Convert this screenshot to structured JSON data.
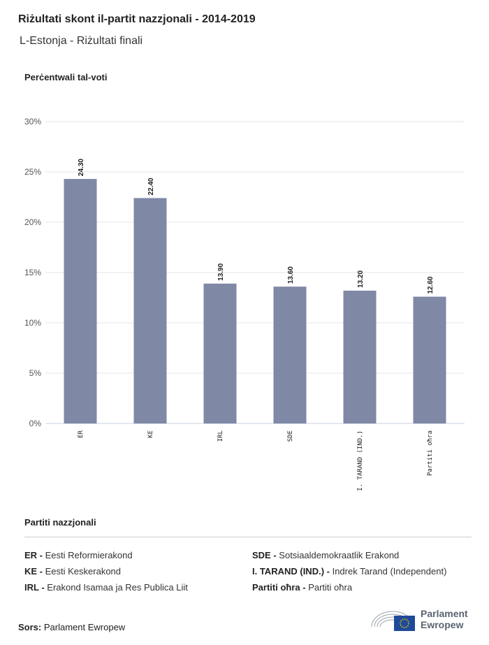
{
  "title": "Riżultati skont il-partit nazzjonali - 2014-2019",
  "subtitle": "L-Estonja - Riżultati finali",
  "legend_title": "Partiti nazzjonali",
  "legend": [
    {
      "abbr": "ER -",
      "name": "Eesti Reformierakond"
    },
    {
      "abbr": "KE -",
      "name": "Eesti Keskerakond"
    },
    {
      "abbr": "IRL -",
      "name": "Erakond Isamaa ja Res Publica Liit"
    },
    {
      "abbr": "SDE -",
      "name": "Sotsiaaldemokraatlik Erakond"
    },
    {
      "abbr": "I. TARAND (IND.) -",
      "name": "Indrek Tarand (Independent)"
    },
    {
      "abbr": "Partiti oħra -",
      "name": "Partiti oħra"
    }
  ],
  "source_label": "Sors:",
  "source": "Parlament Ewropew",
  "logo_text": [
    "Parlament",
    "Ewropew"
  ],
  "colors": {
    "bar": "#7f88a5",
    "grid": "#e6e6e6",
    "axis": "#c8d0e0"
  },
  "chart_data": {
    "type": "bar",
    "ylabel": "Perċentwali tal-voti",
    "categories": [
      "ER",
      "KE",
      "IRL",
      "SDE",
      "I. TARAND (IND.)",
      "Partiti oħra"
    ],
    "values": [
      24.3,
      22.4,
      13.9,
      13.6,
      13.2,
      12.6
    ],
    "value_labels": [
      "24.30",
      "22.40",
      "13.90",
      "13.60",
      "13.20",
      "12.60"
    ],
    "ylim": [
      0,
      30
    ],
    "yticks": [
      0,
      5,
      10,
      15,
      20,
      25,
      30
    ],
    "ytick_labels": [
      "0%",
      "5%",
      "10%",
      "15%",
      "20%",
      "25%",
      "30%"
    ],
    "grid": true
  }
}
